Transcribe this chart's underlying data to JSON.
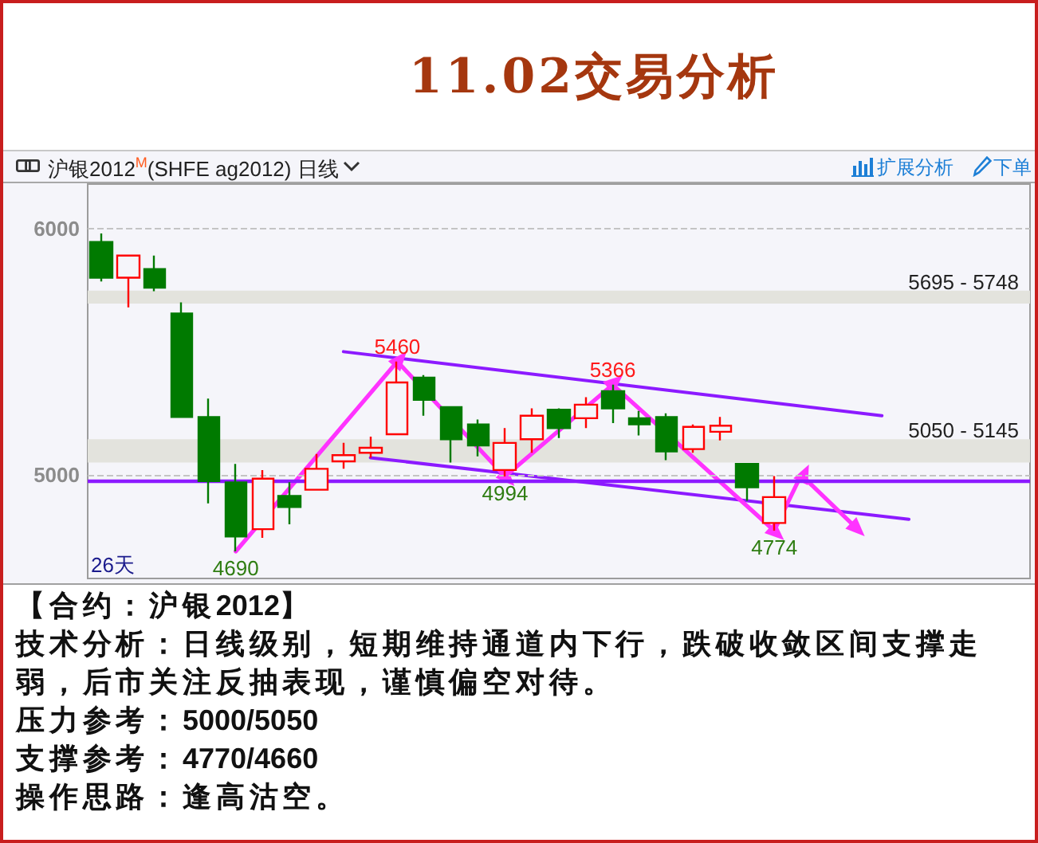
{
  "chart_data": {
    "type": "candlestick",
    "title": "11.02交易分析",
    "subtitle": "沪银2012$^{M}$(SHFE ag2012) 日线",
    "categories": [
      null,
      null,
      null,
      null,
      null,
      null,
      null,
      null,
      null,
      null,
      null,
      null,
      null,
      null,
      null,
      null,
      null,
      null,
      null,
      null,
      null,
      null,
      null,
      null,
      null,
      null,
      null,
      null,
      null,
      null,
      null,
      null,
      null,
      null,
      null
    ],
    "ohlc": [
      [
        5945,
        5980,
        5785,
        5800
      ],
      [
        5800,
        5890,
        5680,
        5890
      ],
      [
        5835,
        5890,
        5745,
        5760
      ],
      [
        5655,
        5700,
        5235,
        5235
      ],
      [
        5235,
        5310,
        4885,
        4975
      ],
      [
        4970,
        5045,
        4690,
        4750
      ],
      [
        4780,
        5020,
        4745,
        4985
      ],
      [
        4915,
        4970,
        4800,
        4870
      ],
      [
        4940,
        5085,
        4940,
        5025
      ],
      [
        5055,
        5130,
        5025,
        5080
      ],
      [
        5090,
        5155,
        5070,
        5110
      ],
      [
        5165,
        5460,
        5165,
        5375
      ],
      [
        5395,
        5405,
        5240,
        5305
      ],
      [
        5275,
        5275,
        5050,
        5145
      ],
      [
        5205,
        5225,
        5075,
        5120
      ],
      [
        5020,
        5190,
        4994,
        5130
      ],
      [
        5145,
        5270,
        5090,
        5240
      ],
      [
        5265,
        5270,
        5150,
        5190
      ],
      [
        5230,
        5315,
        5190,
        5285
      ],
      [
        5340,
        5366,
        5210,
        5270
      ],
      [
        5230,
        5260,
        5160,
        5205
      ],
      [
        5235,
        5250,
        5060,
        5095
      ],
      [
        5105,
        5205,
        5090,
        5195
      ],
      [
        5175,
        5235,
        5140,
        5200
      ],
      [
        5045,
        5045,
        4895,
        4950
      ],
      [
        4805,
        4995,
        4774,
        4910
      ],
      null,
      null,
      null,
      null,
      null,
      null,
      null,
      null,
      null
    ],
    "colors": [
      "#007a00",
      "#ff0000",
      "#007a00",
      "#007a00",
      "#007a00",
      "#007a00",
      "#ff0000",
      "#007a00",
      "#ff0000",
      "#ff0000",
      "#ff0000",
      "#ff0000",
      "#007a00",
      "#007a00",
      "#007a00",
      "#ff0000",
      "#ff0000",
      "#007a00",
      "#ff0000",
      "#007a00",
      "#007a00",
      "#007a00",
      "#ff0000",
      "#ff0000",
      "#007a00",
      "#ff0000",
      null,
      null,
      null,
      null,
      null,
      null,
      null,
      null,
      null
    ],
    "series": [
      {
        "type": "line",
        "color": "#8c1aff",
        "values": [
          null,
          null,
          null,
          null,
          null,
          null,
          null,
          null,
          null,
          5500,
          null,
          null,
          null,
          null,
          null,
          null,
          null,
          null,
          null,
          null,
          null,
          null,
          null,
          null,
          null,
          null,
          null,
          null,
          null,
          5240,
          null,
          null,
          null,
          null,
          null
        ]
      },
      {
        "type": "line",
        "color": "#8c1aff",
        "values": [
          null,
          null,
          null,
          null,
          null,
          null,
          null,
          null,
          null,
          null,
          5070,
          null,
          null,
          null,
          null,
          null,
          null,
          null,
          null,
          null,
          null,
          null,
          null,
          null,
          null,
          null,
          null,
          null,
          null,
          null,
          4820,
          null,
          null,
          null,
          null
        ]
      },
      {
        "type": "line",
        "color": "#ff33ff",
        "marker": "triangle",
        "values": [
          null,
          null,
          null,
          null,
          null,
          4690,
          null,
          null,
          null,
          null,
          null,
          5460,
          null,
          null,
          null,
          4994,
          null,
          null,
          null,
          5366,
          null,
          null,
          null,
          null,
          null,
          4774,
          5000,
          null,
          4790,
          null,
          null,
          null,
          null,
          null,
          null
        ]
      }
    ],
    "ylim": [
      4580,
      6180
    ],
    "yticks": [
      5000,
      6000
    ],
    "grid": "y",
    "tick_labels": "y",
    "ref_lines": [
      {
        "axis": "y",
        "value": 4975,
        "color": "#8c1aff"
      }
    ],
    "bands": [
      {
        "axis": "y",
        "from": 5695,
        "to": 5748,
        "label": "5695 - 5748",
        "color": "#e3e3dd"
      },
      {
        "axis": "y",
        "from": 5050,
        "to": 5145,
        "label": "5050 - 5145",
        "color": "#e3e3dd"
      }
    ],
    "annotations": [
      "扩展分析",
      "下单",
      "26天",
      {
        "text": "4690",
        "y": 4690
      },
      {
        "text": "5460",
        "y": 5460
      },
      {
        "text": "4994",
        "y": 4994
      },
      {
        "text": "5366",
        "y": 5366
      },
      {
        "text": "4774",
        "y": 4774
      },
      "【合约：沪银2012】",
      "技术分析：日线级别，短期维持通道内下行，跌破收敛区间支撑走弱，后市关注反抽表现，谨慎偏空对待。",
      "压力参考：5000/5050",
      "支撑参考：4770/4660",
      "操作思路：逢高沽空。"
    ]
  }
}
